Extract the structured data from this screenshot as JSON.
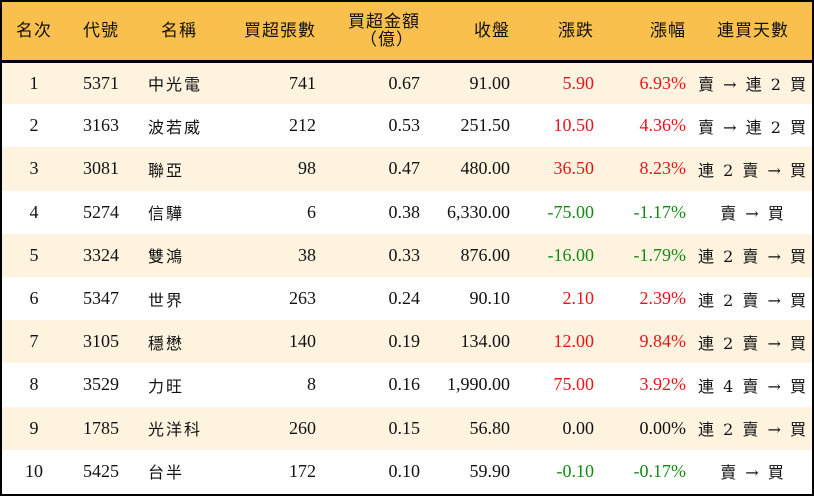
{
  "table": {
    "headers": {
      "rank": "名次",
      "code": "代號",
      "name": "名稱",
      "net_buy_lots": "買超張數",
      "net_buy_amount_line1": "買超金額",
      "net_buy_amount_line2": "（億）",
      "close": "收盤",
      "change": "漲跌",
      "change_pct": "漲幅",
      "buy_streak": "連買天數"
    },
    "colors": {
      "header_bg": "#f9c04d",
      "odd_row_bg": "#fdf3de",
      "even_row_bg": "#ffffff",
      "up": "#e8141c",
      "down": "#138a13"
    },
    "rows": [
      {
        "rank": "1",
        "code": "5371",
        "name": "中光電",
        "net_buy_lots": "741",
        "net_buy_amount": "0.67",
        "close": "91.00",
        "change": "5.90",
        "change_pct": "6.93%",
        "direction": "up",
        "buy_streak": "賣 → 連 2 買"
      },
      {
        "rank": "2",
        "code": "3163",
        "name": "波若威",
        "net_buy_lots": "212",
        "net_buy_amount": "0.53",
        "close": "251.50",
        "change": "10.50",
        "change_pct": "4.36%",
        "direction": "up",
        "buy_streak": "賣 → 連 2 買"
      },
      {
        "rank": "3",
        "code": "3081",
        "name": "聯亞",
        "net_buy_lots": "98",
        "net_buy_amount": "0.47",
        "close": "480.00",
        "change": "36.50",
        "change_pct": "8.23%",
        "direction": "up",
        "buy_streak": "連 2 賣 → 買"
      },
      {
        "rank": "4",
        "code": "5274",
        "name": "信驊",
        "net_buy_lots": "6",
        "net_buy_amount": "0.38",
        "close": "6,330.00",
        "change": "-75.00",
        "change_pct": "-1.17%",
        "direction": "down",
        "buy_streak": "賣 → 買"
      },
      {
        "rank": "5",
        "code": "3324",
        "name": "雙鴻",
        "net_buy_lots": "38",
        "net_buy_amount": "0.33",
        "close": "876.00",
        "change": "-16.00",
        "change_pct": "-1.79%",
        "direction": "down",
        "buy_streak": "連 2 賣 → 買"
      },
      {
        "rank": "6",
        "code": "5347",
        "name": "世界",
        "net_buy_lots": "263",
        "net_buy_amount": "0.24",
        "close": "90.10",
        "change": "2.10",
        "change_pct": "2.39%",
        "direction": "up",
        "buy_streak": "連 2 賣 → 買"
      },
      {
        "rank": "7",
        "code": "3105",
        "name": "穩懋",
        "net_buy_lots": "140",
        "net_buy_amount": "0.19",
        "close": "134.00",
        "change": "12.00",
        "change_pct": "9.84%",
        "direction": "up",
        "buy_streak": "連 2 賣 → 買"
      },
      {
        "rank": "8",
        "code": "3529",
        "name": "力旺",
        "net_buy_lots": "8",
        "net_buy_amount": "0.16",
        "close": "1,990.00",
        "change": "75.00",
        "change_pct": "3.92%",
        "direction": "up",
        "buy_streak": "連 4 賣 → 買"
      },
      {
        "rank": "9",
        "code": "1785",
        "name": "光洋科",
        "net_buy_lots": "260",
        "net_buy_amount": "0.15",
        "close": "56.80",
        "change": "0.00",
        "change_pct": "0.00%",
        "direction": "flat",
        "buy_streak": "連 2 賣 → 買"
      },
      {
        "rank": "10",
        "code": "5425",
        "name": "台半",
        "net_buy_lots": "172",
        "net_buy_amount": "0.10",
        "close": "59.90",
        "change": "-0.10",
        "change_pct": "-0.17%",
        "direction": "down",
        "buy_streak": "賣 → 買"
      }
    ]
  }
}
